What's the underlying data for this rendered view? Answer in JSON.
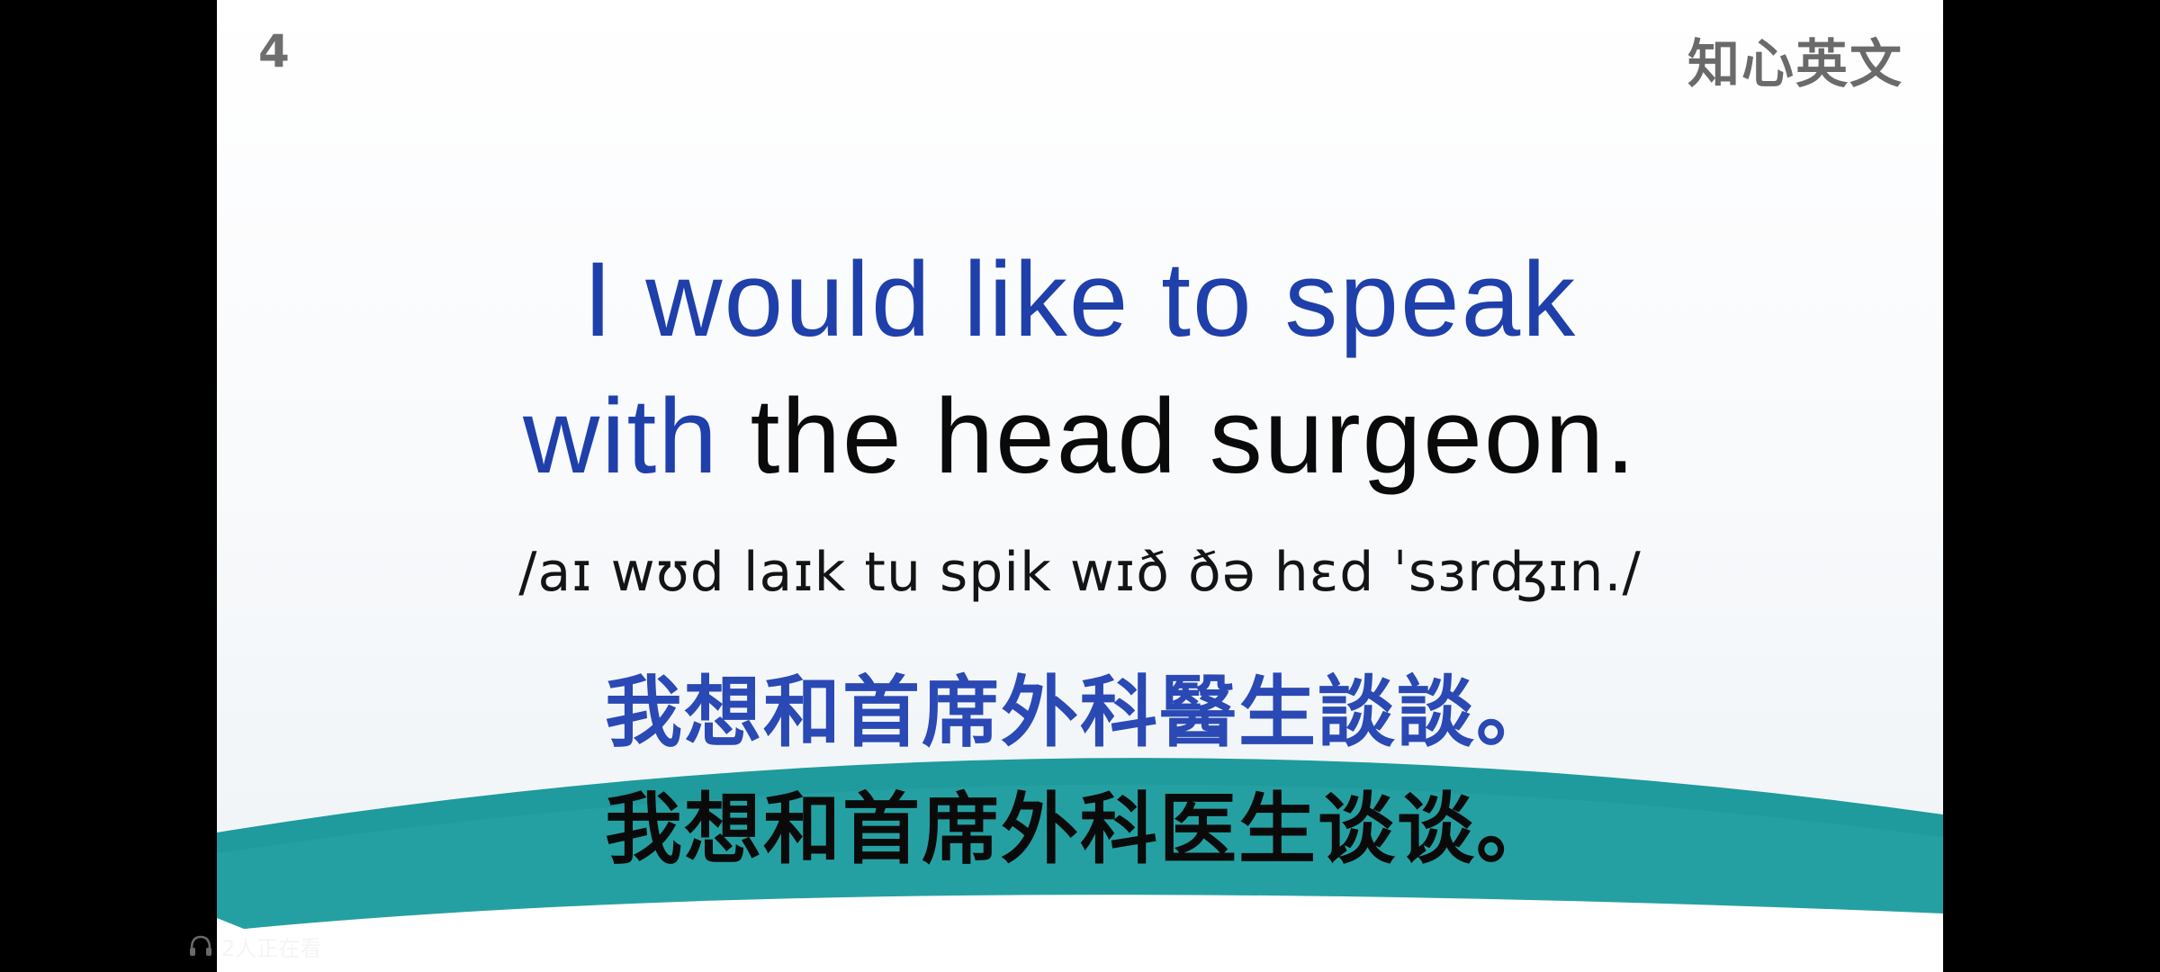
{
  "slide": {
    "number": "4",
    "brand": "知心英文",
    "sentence_line1": "I would like to speak",
    "sentence_line2_highlight": "with",
    "sentence_line2_rest": " the head surgeon.",
    "phonetic": "/aɪ wʊd laɪk tu spik wɪð ðə hɛd ˈsɜrʤɪn./",
    "translation_traditional": "我想和首席外科醫生談談。",
    "translation_simplified": "我想和首席外科医生谈谈。"
  },
  "overlay": {
    "viewer_icon": "headphones-icon",
    "viewer_text": "2人正在看"
  },
  "colors": {
    "highlight_blue": "#1f3faa",
    "teal": "#1f9a9d",
    "text_black": "#0a0a0a"
  }
}
